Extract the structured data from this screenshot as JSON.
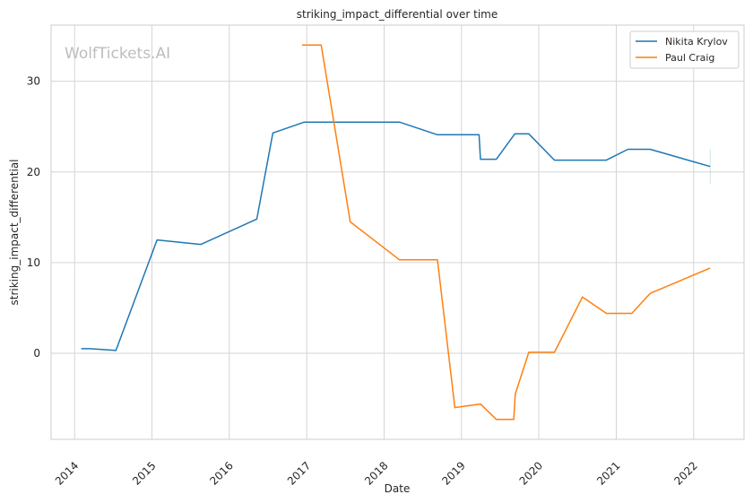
{
  "chart_data": {
    "type": "line",
    "title": "striking_impact_differential over time",
    "xlabel": "Date",
    "ylabel": "striking_impact_differential",
    "watermark": "WolfTickets.AI",
    "x_ticks": [
      "2014",
      "2015",
      "2016",
      "2017",
      "2018",
      "2019",
      "2020",
      "2021",
      "2022"
    ],
    "y_ticks": [
      0,
      10,
      20,
      30
    ],
    "xlim": [
      "2013-09-12",
      "2022-08-27"
    ],
    "ylim": [
      -9.5,
      36.2
    ],
    "grid": true,
    "legend_position": "top-right",
    "series": [
      {
        "name": "Nikita Krylov",
        "color": "#1f77b4",
        "points": [
          [
            "2014-02-01",
            0.5
          ],
          [
            "2014-03-15",
            0.5
          ],
          [
            "2014-07-15",
            0.3
          ],
          [
            "2015-01-25",
            12.5
          ],
          [
            "2015-08-20",
            12.0
          ],
          [
            "2016-05-10",
            14.8
          ],
          [
            "2016-07-25",
            24.3
          ],
          [
            "2016-12-20",
            25.5
          ],
          [
            "2018-03-15",
            25.5
          ],
          [
            "2018-09-10",
            24.1
          ],
          [
            "2019-03-25",
            24.1
          ],
          [
            "2019-04-01",
            21.4
          ],
          [
            "2019-06-15",
            21.4
          ],
          [
            "2019-09-10",
            24.2
          ],
          [
            "2019-11-15",
            24.2
          ],
          [
            "2020-03-15",
            21.3
          ],
          [
            "2020-11-15",
            21.3
          ],
          [
            "2021-02-25",
            22.5
          ],
          [
            "2021-06-10",
            22.5
          ],
          [
            "2022-03-20",
            20.6
          ]
        ]
      },
      {
        "name": "Paul Craig",
        "color": "#ff7f0e",
        "points": [
          [
            "2016-12-10",
            34.0
          ],
          [
            "2017-03-10",
            34.0
          ],
          [
            "2017-07-25",
            14.5
          ],
          [
            "2018-03-15",
            10.3
          ],
          [
            "2018-09-10",
            10.3
          ],
          [
            "2018-12-01",
            -6.0
          ],
          [
            "2019-04-01",
            -5.6
          ],
          [
            "2019-06-15",
            -7.3
          ],
          [
            "2019-09-05",
            -7.3
          ],
          [
            "2019-09-12",
            -4.5
          ],
          [
            "2019-11-15",
            0.1
          ],
          [
            "2020-03-15",
            0.1
          ],
          [
            "2020-07-25",
            6.2
          ],
          [
            "2020-11-15",
            4.4
          ],
          [
            "2021-03-15",
            4.4
          ],
          [
            "2021-06-10",
            6.6
          ],
          [
            "2022-03-20",
            9.4
          ]
        ]
      }
    ],
    "error_bar": {
      "x": "2022-03-20",
      "low": 18.7,
      "high": 22.5,
      "color": "#1f77b4"
    }
  }
}
